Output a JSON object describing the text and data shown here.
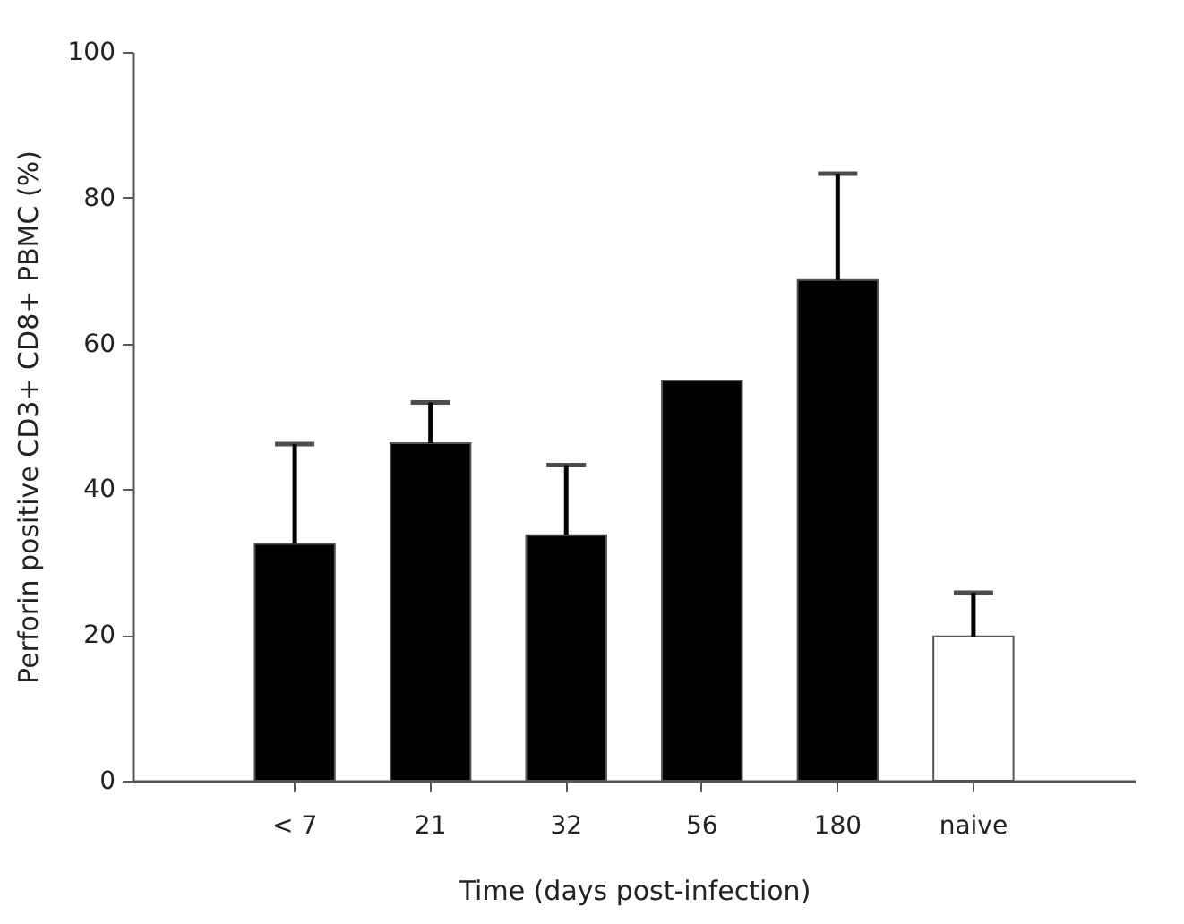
{
  "chart_data": {
    "type": "bar",
    "categories": [
      "< 7",
      "21",
      "32",
      "56",
      "180",
      "naive"
    ],
    "values": [
      32.5,
      46.3,
      33.7,
      54.9,
      68.7,
      19.8
    ],
    "colors": [
      "#000000",
      "#000000",
      "#000000",
      "#000000",
      "#000000",
      "#ffffff"
    ],
    "errors": [
      [
        32.5,
        46.2
      ],
      [
        46.3,
        51.9
      ],
      [
        33.7,
        43.3
      ],
      null,
      [
        68.7,
        83.3
      ],
      [
        19.8,
        25.8
      ]
    ],
    "xlabel": "Time (days post-infection)",
    "ylabel": "Perforin positive CD3+ CD8+ PBMC (%)",
    "ylim": [
      0,
      100
    ],
    "yticks": [
      0,
      20,
      40,
      60,
      80,
      100
    ],
    "grid": false
  }
}
